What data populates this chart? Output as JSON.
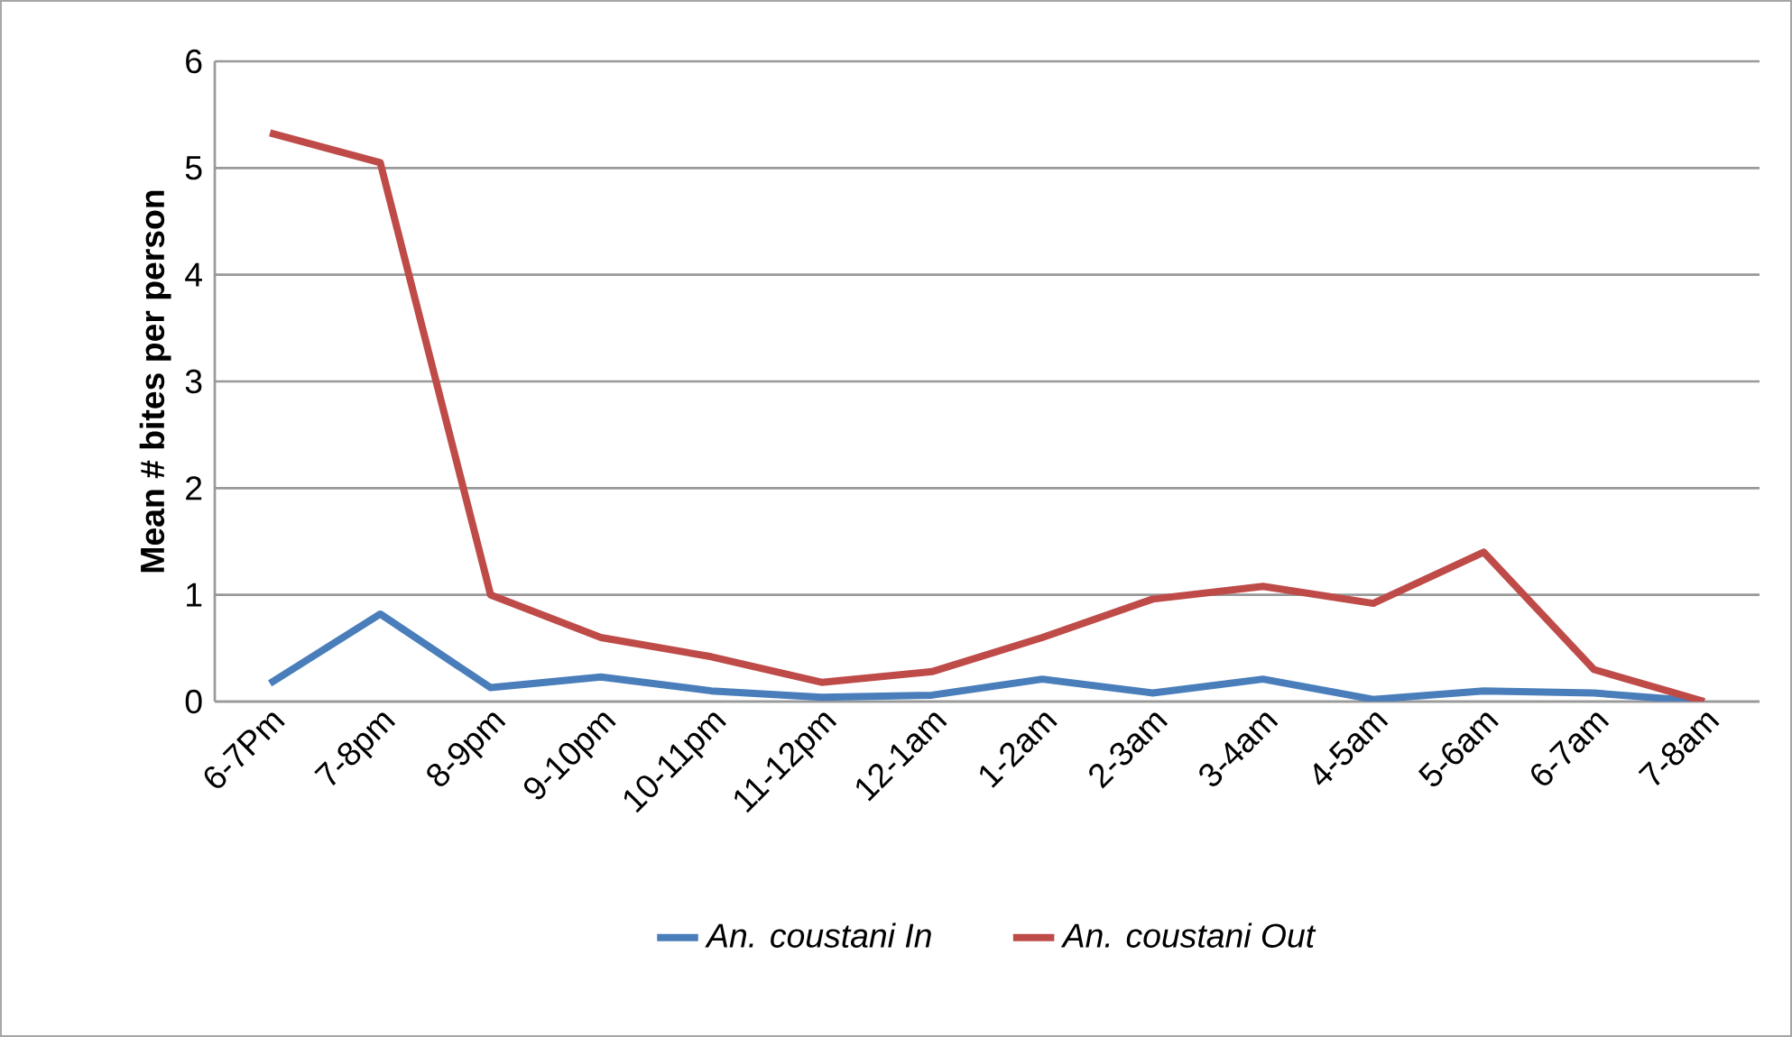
{
  "chart_data": {
    "type": "line",
    "ylabel": "Mean # bites per person",
    "categories": [
      "6-7Pm",
      "7-8pm",
      "8-9pm",
      "9-10pm",
      "10-11pm",
      "11-12pm",
      "12-1am",
      "1-2am",
      "2-3am",
      "3-4am",
      "4-5am",
      "5-6am",
      "6-7am",
      "7-8am"
    ],
    "series": [
      {
        "name": "*An. coustani In*",
        "color": "#4a7ebb",
        "values": [
          0.17,
          0.82,
          0.13,
          0.23,
          0.1,
          0.04,
          0.06,
          0.21,
          0.08,
          0.21,
          0.02,
          0.1,
          0.08,
          0.0
        ]
      },
      {
        "name": "*An. coustani Out*",
        "color": "#be4b48",
        "values": [
          5.33,
          5.05,
          1.0,
          0.6,
          0.42,
          0.18,
          0.28,
          0.6,
          0.96,
          1.08,
          0.92,
          1.4,
          0.3,
          0.0
        ]
      }
    ],
    "ylim": [
      0,
      6
    ],
    "yticks": [
      0,
      1,
      2,
      3,
      4,
      5,
      6
    ],
    "grid": "y",
    "legend": "bottom",
    "line_style": "solid"
  }
}
